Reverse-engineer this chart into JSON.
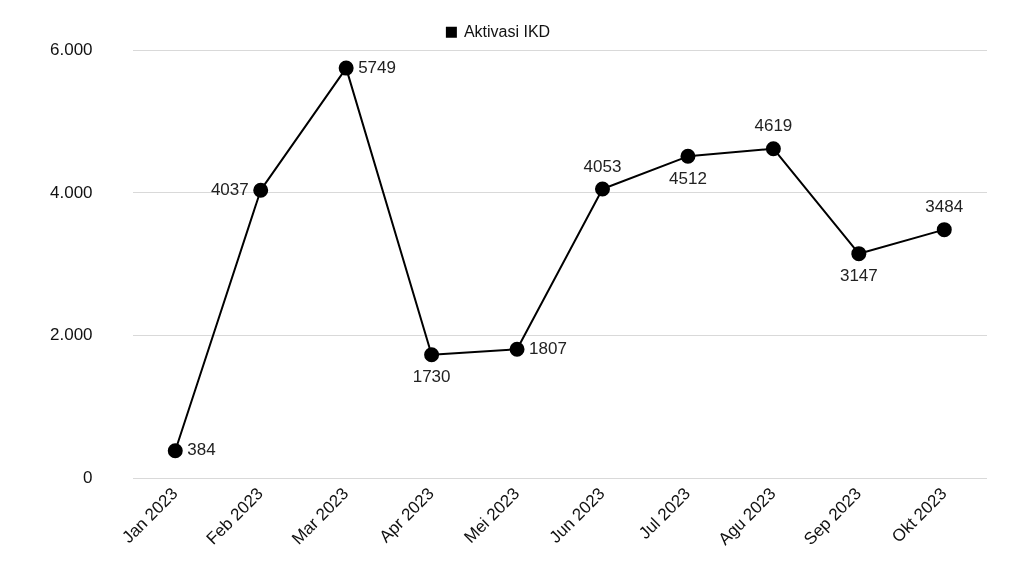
{
  "chart_data": {
    "type": "line",
    "categories": [
      "Jan 2023",
      "Feb 2023",
      "Mar 2023",
      "Apr 2023",
      "Mei 2023",
      "Jun 2023",
      "Jul 2023",
      "Agu 2023",
      "Sep 2023",
      "Okt 2023"
    ],
    "series": [
      {
        "name": "Aktivasi IKD",
        "color": "#000000",
        "values": [
          384,
          4037,
          5749,
          1730,
          1807,
          4053,
          4512,
          4619,
          3147,
          3484
        ]
      }
    ],
    "ylim": [
      0,
      6000
    ],
    "yticks": [
      0,
      {
        "value": 2000,
        "label": "2.000"
      },
      {
        "value": 4000,
        "label": "4.000"
      },
      {
        "value": 6000,
        "label": "6.000"
      }
    ],
    "grid": "y",
    "legend": "top",
    "marker": "circle",
    "line_style": "solid",
    "data_labels": true
  }
}
